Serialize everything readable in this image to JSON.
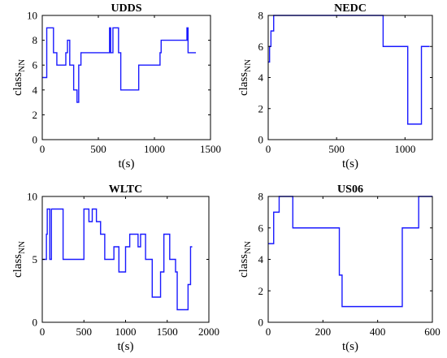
{
  "chart_data": [
    {
      "type": "line",
      "title": "UDDS",
      "xlabel": "t(s)",
      "ylabel": {
        "main": "class",
        "sub": "NN"
      },
      "xlim": [
        0,
        1500
      ],
      "ylim": [
        0,
        10
      ],
      "xticks": [
        0,
        500,
        1000,
        1500
      ],
      "yticks": [
        0,
        2,
        4,
        6,
        8,
        10
      ],
      "series": [
        {
          "color": "#1a1aff",
          "x": [
            0,
            40,
            40,
            100,
            100,
            130,
            130,
            210,
            210,
            225,
            225,
            245,
            245,
            280,
            280,
            310,
            310,
            325,
            325,
            345,
            345,
            500,
            500,
            600,
            600,
            610,
            610,
            630,
            630,
            680,
            680,
            700,
            700,
            860,
            860,
            1050,
            1050,
            1060,
            1060,
            1290,
            1290,
            1300,
            1300,
            1320,
            1320,
            1370
          ],
          "y": [
            5,
            5,
            9,
            9,
            7,
            7,
            6,
            6,
            7,
            7,
            8,
            8,
            6,
            6,
            4,
            4,
            3,
            3,
            6,
            6,
            7,
            7,
            7,
            7,
            9,
            9,
            7,
            7,
            9,
            9,
            7,
            7,
            4,
            4,
            6,
            6,
            7,
            7,
            8,
            8,
            9,
            9,
            7,
            7,
            7,
            7
          ]
        }
      ]
    },
    {
      "type": "line",
      "title": "NEDC",
      "xlabel": "t(s)",
      "ylabel": {
        "main": "class",
        "sub": "NN"
      },
      "xlim": [
        0,
        1200
      ],
      "ylim": [
        0,
        8
      ],
      "xticks": [
        0,
        500,
        1000
      ],
      "yticks": [
        0,
        2,
        4,
        6,
        8
      ],
      "series": [
        {
          "color": "#1a1aff",
          "x": [
            0,
            10,
            10,
            20,
            20,
            40,
            40,
            840,
            840,
            1020,
            1020,
            1120,
            1120,
            1180
          ],
          "y": [
            5,
            5,
            6,
            6,
            7,
            7,
            8,
            8,
            6,
            6,
            1,
            1,
            6,
            6
          ]
        }
      ]
    },
    {
      "type": "line",
      "title": "WLTC",
      "xlabel": "t(s)",
      "ylabel": {
        "main": "class",
        "sub": "NN"
      },
      "xlim": [
        0,
        2000
      ],
      "ylim": [
        0,
        10
      ],
      "xticks": [
        0,
        500,
        1000,
        1500,
        2000
      ],
      "yticks": [
        0,
        5,
        10
      ],
      "series": [
        {
          "color": "#1a1aff",
          "x": [
            0,
            50,
            50,
            60,
            60,
            90,
            90,
            110,
            110,
            250,
            250,
            500,
            500,
            560,
            560,
            600,
            600,
            650,
            650,
            700,
            700,
            750,
            750,
            860,
            860,
            920,
            920,
            1000,
            1000,
            1050,
            1050,
            1150,
            1150,
            1180,
            1180,
            1240,
            1240,
            1320,
            1320,
            1420,
            1420,
            1460,
            1460,
            1530,
            1530,
            1600,
            1600,
            1620,
            1620,
            1750,
            1750,
            1780,
            1780,
            1800
          ],
          "y": [
            5,
            5,
            7,
            7,
            9,
            9,
            5,
            5,
            9,
            9,
            5,
            5,
            9,
            9,
            8,
            8,
            9,
            9,
            8,
            8,
            7,
            7,
            5,
            5,
            6,
            6,
            4,
            4,
            6,
            6,
            7,
            7,
            6,
            6,
            7,
            7,
            5,
            5,
            2,
            2,
            4,
            4,
            7,
            7,
            5,
            5,
            4,
            4,
            1,
            1,
            3,
            3,
            6,
            6
          ]
        }
      ]
    },
    {
      "type": "line",
      "title": "US06",
      "xlabel": "t(s)",
      "ylabel": {
        "main": "class",
        "sub": "NN"
      },
      "xlim": [
        0,
        600
      ],
      "ylim": [
        0,
        8
      ],
      "xticks": [
        0,
        200,
        400,
        600
      ],
      "yticks": [
        0,
        2,
        4,
        6,
        8
      ],
      "series": [
        {
          "color": "#1a1aff",
          "x": [
            0,
            20,
            20,
            40,
            40,
            50,
            50,
            90,
            90,
            260,
            260,
            270,
            270,
            490,
            490,
            550,
            550,
            600
          ],
          "y": [
            5,
            5,
            7,
            7,
            8,
            8,
            8,
            8,
            6,
            6,
            3,
            3,
            1,
            1,
            6,
            6,
            8,
            8
          ]
        }
      ]
    }
  ]
}
